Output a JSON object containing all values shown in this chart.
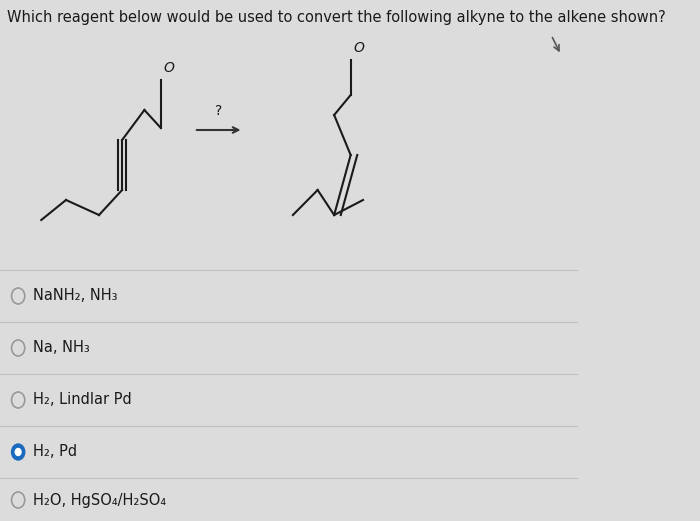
{
  "title": "Which reagent below would be used to convert the following alkyne to the alkene shown?",
  "background_color": "#dcdcdc",
  "text_color": "#1a1a1a",
  "options": [
    {
      "label": "NaNH₂, NH₃",
      "selected": false
    },
    {
      "label": "Na, NH₃",
      "selected": false
    },
    {
      "label": "H₂, Lindlar Pd",
      "selected": false
    },
    {
      "label": "H₂, Pd",
      "selected": true
    },
    {
      "label": "H₂O, HgSO₄/H₂SO₄",
      "selected": false
    }
  ],
  "selected_color": "#1a6bbf",
  "unselected_color": "#999999",
  "divider_color": "#c0c0c0",
  "font_size_title": 10.5,
  "font_size_option": 10.5,
  "mol_line_color": "#1a1a1a",
  "mol_lw": 1.5
}
